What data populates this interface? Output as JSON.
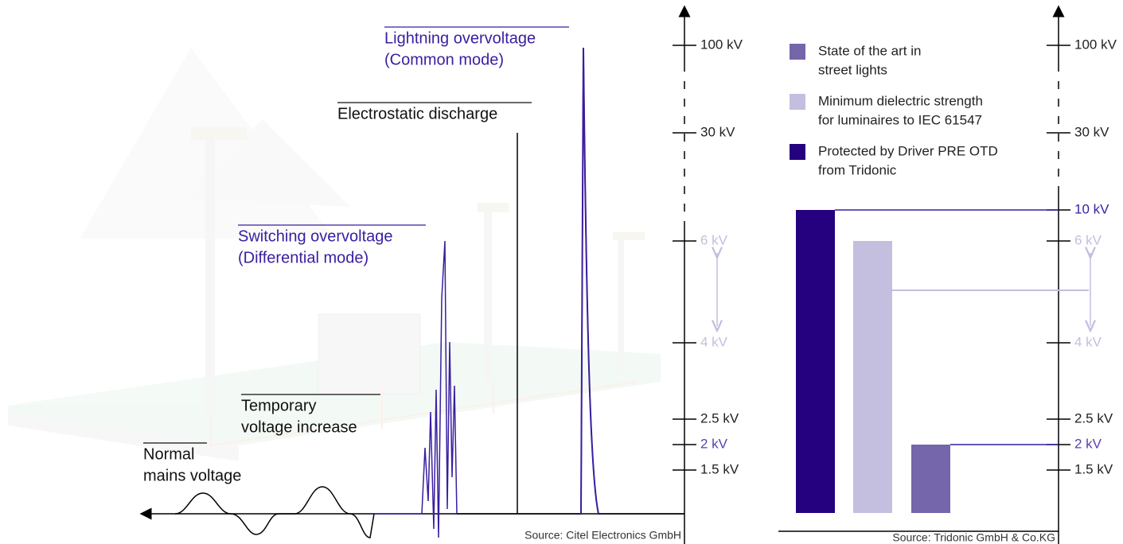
{
  "left_panel": {
    "annotations": [
      {
        "lines": [
          "Lightning overvoltage",
          "(Common mode)"
        ]
      },
      {
        "lines": [
          "Electrostatic discharge"
        ]
      },
      {
        "lines": [
          "Switching overvoltage",
          "(Differential mode)"
        ]
      },
      {
        "lines": [
          "Temporary",
          "voltage increase"
        ]
      },
      {
        "lines": [
          "Normal",
          "mains voltage"
        ]
      }
    ],
    "yticks": [
      {
        "value": 100,
        "label": "100 kV"
      },
      {
        "value": 30,
        "label": "30 kV"
      },
      {
        "value": 6,
        "label": "6 kV",
        "color": "#c4bedf"
      },
      {
        "value": 4,
        "label": "4 kV",
        "color": "#c4bedf"
      },
      {
        "value": 2.5,
        "label": "2.5 kV"
      },
      {
        "value": 2,
        "label": "2 kV",
        "color": "#5a3fb0"
      },
      {
        "value": 1.5,
        "label": "1.5 kV"
      }
    ],
    "source": "Source: Citel Electronics GmbH"
  },
  "right_panel": {
    "series": [
      {
        "name": [
          "State of the art in",
          "street lights"
        ],
        "color": "#7565ab",
        "value": 2
      },
      {
        "name": [
          "Minimum dielectric strength",
          "for luminaires to IEC 61547"
        ],
        "color": "#c4bedf",
        "value": 6
      },
      {
        "name": [
          "Protected by Driver PRE OTD",
          "from Tridonic"
        ],
        "color": "#25007f",
        "value": 10
      }
    ],
    "yticks": [
      {
        "value": 100,
        "label": "100 kV"
      },
      {
        "value": 30,
        "label": "30 kV"
      },
      {
        "value": 10,
        "label": "10 kV",
        "color": "#3a1ea0"
      },
      {
        "value": 6,
        "label": "6 kV",
        "color": "#c4bedf"
      },
      {
        "value": 4,
        "label": "4 kV",
        "color": "#c4bedf"
      },
      {
        "value": 2.5,
        "label": "2.5 kV"
      },
      {
        "value": 2,
        "label": "2 kV",
        "color": "#5a3fb0"
      },
      {
        "value": 1.5,
        "label": "1.5 kV"
      }
    ],
    "source": "Source: Tridonic GmbH & Co.KG"
  }
}
